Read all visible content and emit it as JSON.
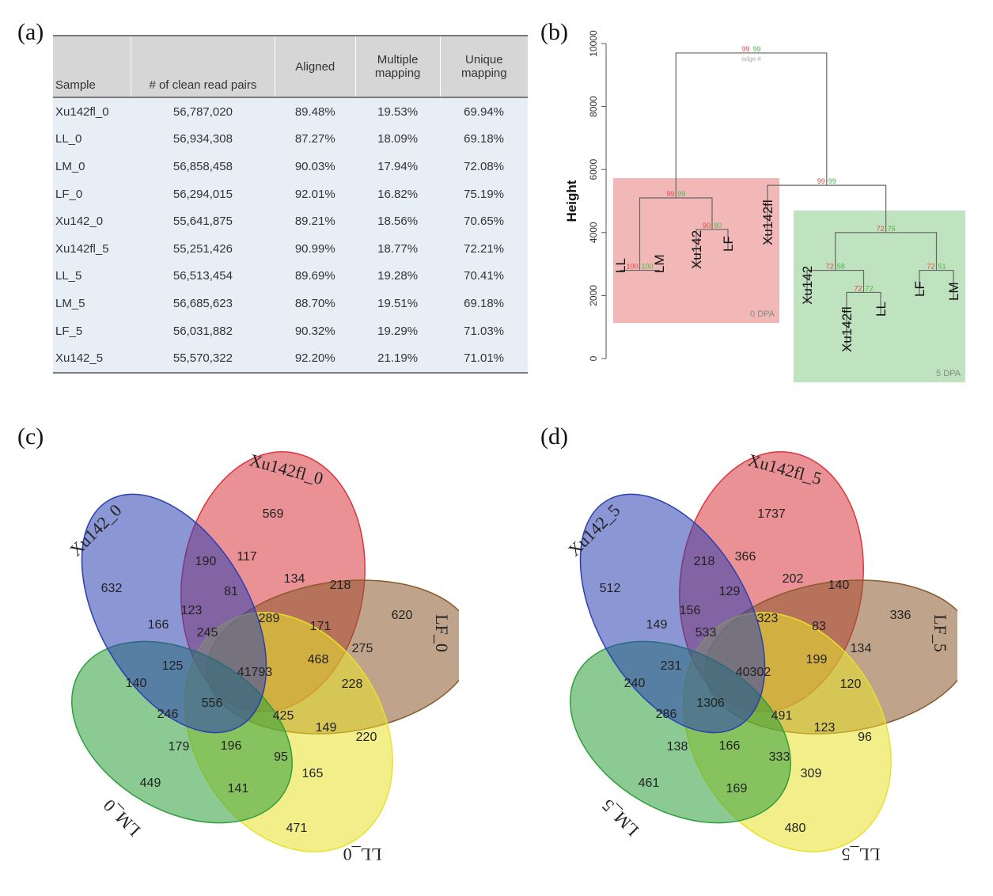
{
  "labels": {
    "a": "(a)",
    "b": "(b)",
    "c": "(c)",
    "d": "(d)"
  },
  "table": {
    "headers": [
      "Sample",
      "# of clean read pairs",
      "Aligned",
      "Multiple mapping",
      "Unique mapping"
    ],
    "rows": [
      [
        "Xu142fl_0",
        "56,787,020",
        "89.48%",
        "19.53%",
        "69.94%"
      ],
      [
        "LL_0",
        "56,934,308",
        "87.27%",
        "18.09%",
        "69.18%"
      ],
      [
        "LM_0",
        "56,858,458",
        "90.03%",
        "17.94%",
        "72.08%"
      ],
      [
        "LF_0",
        "56,294,015",
        "92.01%",
        "16.82%",
        "75.19%"
      ],
      [
        "Xu142_0",
        "55,641,875",
        "89.21%",
        "18.56%",
        "70.65%"
      ],
      [
        "Xu142fl_5",
        "55,251,426",
        "90.99%",
        "18.77%",
        "72.21%"
      ],
      [
        "LL_5",
        "56,513,454",
        "89.69%",
        "19.28%",
        "70.41%"
      ],
      [
        "LM_5",
        "56,685,623",
        "88.70%",
        "19.51%",
        "69.18%"
      ],
      [
        "LF_5",
        "56,031,882",
        "90.32%",
        "19.29%",
        "71.03%"
      ],
      [
        "Xu142_5",
        "55,570,322",
        "92.20%",
        "21.19%",
        "71.01%"
      ]
    ]
  },
  "dendrogram": {
    "ylabel": "Height",
    "yticks": [
      0,
      2000,
      4000,
      6000,
      8000,
      10000
    ],
    "ylim": [
      0,
      10000
    ],
    "leaves": [
      "LL",
      "LM",
      "Xu142",
      "LF",
      "Xu142fl",
      "Xu142",
      "Xu142fl",
      "LL",
      "LF",
      "LM"
    ],
    "groups": [
      {
        "label": "0 DPA",
        "color": "#f2b8b8"
      },
      {
        "label": "5 DPA",
        "color": "#bfe3bf"
      }
    ],
    "node_labels": [
      {
        "au": "100",
        "bp": "100",
        "h": 2800
      },
      {
        "au": "90",
        "bp": "90",
        "h": 4100
      },
      {
        "au": "99",
        "bp": "99",
        "h": 5100
      },
      {
        "au": "72",
        "bp": "58",
        "h": 2800
      },
      {
        "au": "72",
        "bp": "51",
        "h": 2800
      },
      {
        "au": "72",
        "bp": "72",
        "h": 2100
      },
      {
        "au": "72",
        "bp": "75",
        "h": 4000
      },
      {
        "au": "99",
        "bp": "99",
        "h": 5500
      },
      {
        "au": "99",
        "bp": "99",
        "h": 9700
      }
    ],
    "top_edge_note": "edge #"
  },
  "venn_c": {
    "sets": [
      "Xu142fl_0",
      "LF_0",
      "LL_0",
      "LM_0",
      "Xu142_0"
    ],
    "colors": [
      "#d9363e",
      "#8b5a2b",
      "#e8e22a",
      "#2e9e3a",
      "#2b3fb0"
    ],
    "values": [
      "569",
      "620",
      "471",
      "449",
      "632",
      "190",
      "117",
      "134",
      "218",
      "81",
      "289",
      "171",
      "275",
      "166",
      "123",
      "245",
      "41793",
      "468",
      "228",
      "125",
      "140",
      "556",
      "246",
      "425",
      "149",
      "220",
      "179",
      "196",
      "95",
      "165",
      "141"
    ]
  },
  "venn_d": {
    "sets": [
      "Xu142fl_5",
      "LF_5",
      "LL_5",
      "LM_5",
      "Xu142_5"
    ],
    "colors": [
      "#d9363e",
      "#8b5a2b",
      "#e8e22a",
      "#2e9e3a",
      "#2b3fb0"
    ],
    "values": [
      "1737",
      "336",
      "480",
      "461",
      "512",
      "218",
      "366",
      "202",
      "140",
      "129",
      "323",
      "83",
      "134",
      "149",
      "156",
      "533",
      "40302",
      "199",
      "120",
      "231",
      "240",
      "1306",
      "286",
      "491",
      "123",
      "96",
      "138",
      "166",
      "333",
      "309",
      "169"
    ]
  }
}
